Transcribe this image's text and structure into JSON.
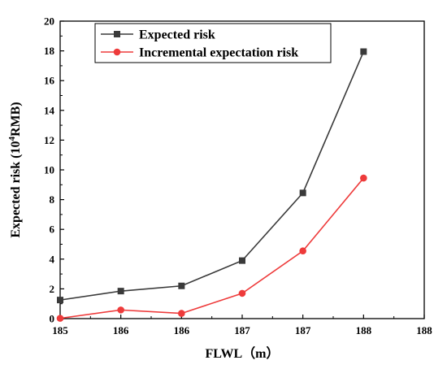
{
  "chart_data": {
    "type": "line",
    "x_tick_labels": [
      "185",
      "186",
      "186",
      "187",
      "187",
      "188",
      "188"
    ],
    "x": [
      0,
      1,
      2,
      3,
      4,
      5
    ],
    "xlim": [
      0,
      6
    ],
    "ylim": [
      0,
      20
    ],
    "y_ticks": [
      0,
      2,
      4,
      6,
      8,
      10,
      12,
      14,
      16,
      18,
      20
    ],
    "xlabel": "FLWL（m）",
    "ylabel_main": "Expected risk (10",
    "ylabel_sup": "4",
    "ylabel_end": "RMB)",
    "grid": false,
    "legend_position": "top-left",
    "series": [
      {
        "name": "Expected risk",
        "color": "#3a3a3a",
        "marker": "square",
        "values": [
          1.25,
          1.85,
          2.2,
          3.9,
          8.45,
          17.95
        ]
      },
      {
        "name": "Incremental expectation risk",
        "color": "#ee3b3b",
        "marker": "circle",
        "values": [
          0.02,
          0.58,
          0.35,
          1.7,
          4.55,
          9.45
        ]
      }
    ]
  }
}
